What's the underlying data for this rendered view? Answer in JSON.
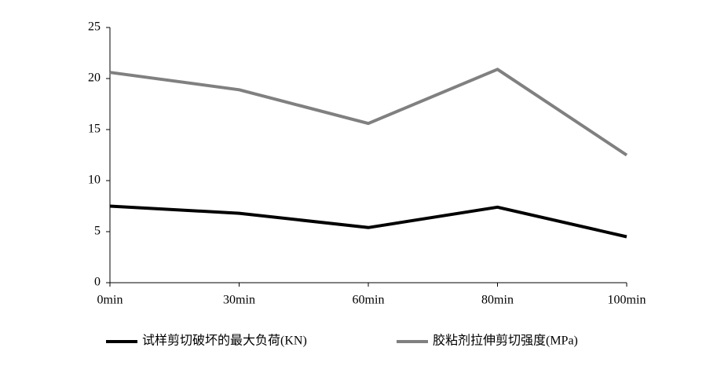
{
  "chart_data": {
    "type": "line",
    "categories": [
      "0min",
      "30min",
      "60min",
      "80min",
      "100min"
    ],
    "series": [
      {
        "name": "试样剪切破坏的最大负荷(KN)",
        "color": "#000000",
        "values": [
          7.5,
          6.8,
          5.4,
          7.4,
          4.5
        ]
      },
      {
        "name": "胶粘剂拉伸剪切强度(MPa)",
        "color": "#808080",
        "values": [
          20.6,
          18.9,
          15.6,
          20.9,
          12.5
        ]
      }
    ],
    "ylim": [
      0,
      25
    ],
    "yticks": [
      0,
      5,
      10,
      15,
      20,
      25
    ],
    "grid": false,
    "legend": "bottom"
  }
}
